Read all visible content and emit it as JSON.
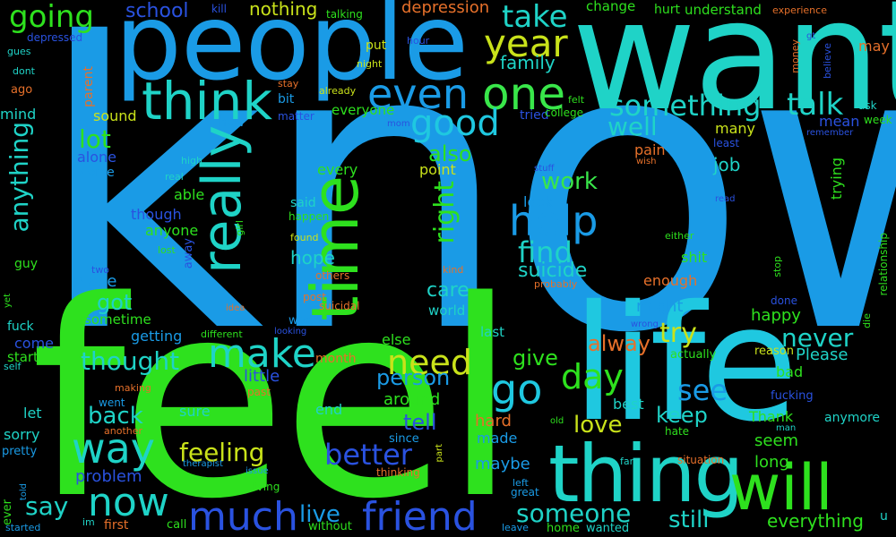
{
  "words": [
    {
      "text": "know",
      "color": "#1a9be6"
    },
    {
      "text": "feel",
      "color": "#2ee11e"
    },
    {
      "text": "want",
      "color": "#1fd3c7"
    },
    {
      "text": "people",
      "color": "#1a9be6"
    },
    {
      "text": "life",
      "color": "#1fc8e0"
    },
    {
      "text": "thing",
      "color": "#1fd3c7"
    },
    {
      "text": "will",
      "color": "#2ee11e"
    },
    {
      "text": "time",
      "color": "#2ee11e"
    },
    {
      "text": "think",
      "color": "#1fd3c7"
    },
    {
      "text": "really",
      "color": "#1fd3c7"
    },
    {
      "text": "one",
      "color": "#39e64a"
    },
    {
      "text": "even",
      "color": "#1a9be6"
    },
    {
      "text": "year",
      "color": "#c9e21a"
    },
    {
      "text": "good",
      "color": "#1fc8e0"
    },
    {
      "text": "help",
      "color": "#1a9be6"
    },
    {
      "text": "make",
      "color": "#1fd3c7"
    },
    {
      "text": "going",
      "color": "#2ee11e"
    },
    {
      "text": "take",
      "color": "#1fd3c7"
    },
    {
      "text": "something",
      "color": "#1fd3c7"
    },
    {
      "text": "talk",
      "color": "#1fd3c7"
    },
    {
      "text": "friend",
      "color": "#2a52e0"
    },
    {
      "text": "much",
      "color": "#2a52e0"
    },
    {
      "text": "now",
      "color": "#1fd3c7"
    },
    {
      "text": "way",
      "color": "#1fd3c7"
    },
    {
      "text": "go",
      "color": "#1fc8e0"
    },
    {
      "text": "need",
      "color": "#c9e21a"
    },
    {
      "text": "day",
      "color": "#2ee11e"
    },
    {
      "text": "see",
      "color": "#1a9be6"
    },
    {
      "text": "better",
      "color": "#2a52e0"
    },
    {
      "text": "feeling",
      "color": "#c9e21a"
    },
    {
      "text": "someone",
      "color": "#1fd3c7"
    },
    {
      "text": "find",
      "color": "#1fd3c7"
    },
    {
      "text": "well",
      "color": "#1fd3c7"
    },
    {
      "text": "lot",
      "color": "#2ee11e"
    },
    {
      "text": "anything",
      "color": "#1fd3c7"
    },
    {
      "text": "school",
      "color": "#2a52e0"
    },
    {
      "text": "nothing",
      "color": "#c9e21a"
    },
    {
      "text": "depression",
      "color": "#e6702a"
    },
    {
      "text": "family",
      "color": "#1fd3c7"
    },
    {
      "text": "never",
      "color": "#1fd3c7"
    },
    {
      "text": "try",
      "color": "#c9e21a"
    },
    {
      "text": "thought",
      "color": "#1fd3c7"
    },
    {
      "text": "back",
      "color": "#1fd3c7"
    },
    {
      "text": "say",
      "color": "#1fd3c7"
    },
    {
      "text": "live",
      "color": "#1a9be6"
    },
    {
      "text": "still",
      "color": "#1fd3c7"
    },
    {
      "text": "love",
      "color": "#c9e21a"
    },
    {
      "text": "keep",
      "color": "#1fd3c7"
    },
    {
      "text": "right",
      "color": "#2ee11e"
    },
    {
      "text": "work",
      "color": "#39e64a"
    },
    {
      "text": "alway",
      "color": "#e6702a"
    },
    {
      "text": "also",
      "color": "#2ee11e"
    },
    {
      "text": "job",
      "color": "#1fd3c7"
    },
    {
      "text": "got",
      "color": "#1fd3c7"
    },
    {
      "text": "give",
      "color": "#2ee11e"
    },
    {
      "text": "person",
      "color": "#1a9be6"
    },
    {
      "text": "tell",
      "color": "#2a52e0"
    },
    {
      "text": "care",
      "color": "#1fd3c7"
    },
    {
      "text": "hope",
      "color": "#1fd3c7"
    },
    {
      "text": "suicide",
      "color": "#1fd3c7"
    },
    {
      "text": "everything",
      "color": "#2ee11e"
    },
    {
      "text": "Please",
      "color": "#1fd3c7"
    },
    {
      "text": "long",
      "color": "#2ee11e"
    },
    {
      "text": "seem",
      "color": "#2ee11e"
    },
    {
      "text": "happy",
      "color": "#2ee11e"
    },
    {
      "text": "maybe",
      "color": "#1a9be6"
    },
    {
      "text": "problem",
      "color": "#2a52e0"
    },
    {
      "text": "place",
      "color": "#1a9be6"
    },
    {
      "text": "might",
      "color": "#1a9be6"
    },
    {
      "text": "sometime",
      "color": "#2ee11e"
    },
    {
      "text": "getting",
      "color": "#1a9be6"
    },
    {
      "text": "little",
      "color": "#2a52e0"
    },
    {
      "text": "around",
      "color": "#2ee11e"
    },
    {
      "text": "else",
      "color": "#2ee11e"
    },
    {
      "text": "hard",
      "color": "#e6702a"
    },
    {
      "text": "made",
      "color": "#1a9be6"
    },
    {
      "text": "best",
      "color": "#1fd3c7"
    },
    {
      "text": "Thank",
      "color": "#2ee11e"
    },
    {
      "text": "bad",
      "color": "#2ee11e"
    },
    {
      "text": "sure",
      "color": "#1fd3c7"
    },
    {
      "text": "end",
      "color": "#1fd3c7"
    },
    {
      "text": "let",
      "color": "#1fd3c7"
    },
    {
      "text": "sorry",
      "color": "#1fd3c7"
    },
    {
      "text": "pretty",
      "color": "#1a9be6"
    },
    {
      "text": "come",
      "color": "#2a52e0"
    },
    {
      "text": "start",
      "color": "#2ee11e"
    },
    {
      "text": "fuck",
      "color": "#1fd3c7"
    },
    {
      "text": "guy",
      "color": "#2ee11e"
    },
    {
      "text": "mind",
      "color": "#1fd3c7"
    },
    {
      "text": "alone",
      "color": "#2a52e0"
    },
    {
      "text": "worse",
      "color": "#1a9be6"
    },
    {
      "text": "sound",
      "color": "#c9e21a"
    },
    {
      "text": "able",
      "color": "#2ee11e"
    },
    {
      "text": "though",
      "color": "#2a52e0"
    },
    {
      "text": "anyone",
      "color": "#2ee11e"
    },
    {
      "text": "said",
      "color": "#1fd3c7"
    },
    {
      "text": "every",
      "color": "#2ee11e"
    },
    {
      "text": "point",
      "color": "#c9e21a"
    },
    {
      "text": "look",
      "color": "#1a9be6"
    },
    {
      "text": "shit",
      "color": "#2ee11e"
    },
    {
      "text": "enough",
      "color": "#e6702a"
    },
    {
      "text": "pain",
      "color": "#e6702a"
    },
    {
      "text": "many",
      "color": "#c9e21a"
    },
    {
      "text": "trying",
      "color": "#2ee11e"
    },
    {
      "text": "mean",
      "color": "#2a52e0"
    },
    {
      "text": "tried",
      "color": "#2a52e0"
    },
    {
      "text": "everyone",
      "color": "#2ee11e"
    },
    {
      "text": "world",
      "color": "#1fd3c7"
    },
    {
      "text": "last",
      "color": "#1fd3c7"
    },
    {
      "text": "month",
      "color": "#e6702a"
    },
    {
      "text": "change",
      "color": "#2ee11e"
    },
    {
      "text": "understand",
      "color": "#2ee11e"
    },
    {
      "text": "hurt",
      "color": "#2ee11e"
    },
    {
      "text": "may",
      "color": "#e6702a"
    },
    {
      "text": "put",
      "color": "#c9e21a"
    },
    {
      "text": "talking",
      "color": "#2ee11e"
    },
    {
      "text": "kill",
      "color": "#2a52e0"
    },
    {
      "text": "experience",
      "color": "#e6702a"
    },
    {
      "text": "depressed",
      "color": "#2a52e0"
    },
    {
      "text": "gues",
      "color": "#1fd3c7"
    },
    {
      "text": "dont",
      "color": "#1fd3c7"
    },
    {
      "text": "ago",
      "color": "#e6702a"
    },
    {
      "text": "parent",
      "color": "#e6702a"
    },
    {
      "text": "new",
      "color": "#1a9be6"
    },
    {
      "text": "bit",
      "color": "#1a9be6"
    },
    {
      "text": "matter",
      "color": "#2a52e0"
    },
    {
      "text": "stay",
      "color": "#e6702a"
    },
    {
      "text": "already",
      "color": "#c9e21a"
    },
    {
      "text": "hour",
      "color": "#2a52e0"
    },
    {
      "text": "night",
      "color": "#c9e21a"
    },
    {
      "text": "mom",
      "color": "#2a52e0"
    },
    {
      "text": "felt",
      "color": "#2ee11e"
    },
    {
      "text": "college",
      "color": "#2ee11e"
    },
    {
      "text": "money",
      "color": "#e6702a"
    },
    {
      "text": "believe",
      "color": "#2a52e0"
    },
    {
      "text": "gt",
      "color": "#2a52e0"
    },
    {
      "text": "ask",
      "color": "#1fd3c7"
    },
    {
      "text": "week",
      "color": "#2ee11e"
    },
    {
      "text": "remember",
      "color": "#2a52e0"
    },
    {
      "text": "least",
      "color": "#2a52e0"
    },
    {
      "text": "wish",
      "color": "#e6702a"
    },
    {
      "text": "stuff",
      "color": "#2a52e0"
    },
    {
      "text": "high",
      "color": "#1fd3c7"
    },
    {
      "text": "real",
      "color": "#1fd3c7"
    },
    {
      "text": "happen",
      "color": "#2ee11e"
    },
    {
      "text": "found",
      "color": "#c9e21a"
    },
    {
      "text": "lost",
      "color": "#2ee11e"
    },
    {
      "text": "away",
      "color": "#2a52e0"
    },
    {
      "text": "girl",
      "color": "#2ee11e"
    },
    {
      "text": "others",
      "color": "#e6702a"
    },
    {
      "text": "post",
      "color": "#e6702a"
    },
    {
      "text": "suicidal",
      "color": "#e6702a"
    },
    {
      "text": "worth",
      "color": "#1a9be6"
    },
    {
      "text": "looking",
      "color": "#2a52e0"
    },
    {
      "text": "idea",
      "color": "#e6702a"
    },
    {
      "text": "different",
      "color": "#2ee11e"
    },
    {
      "text": "making",
      "color": "#e6702a"
    },
    {
      "text": "went",
      "color": "#1a9be6"
    },
    {
      "text": "another",
      "color": "#e6702a"
    },
    {
      "text": "past",
      "color": "#e6702a"
    },
    {
      "text": "therapist",
      "color": "#1a9be6"
    },
    {
      "text": "issue",
      "color": "#1a9be6"
    },
    {
      "text": "living",
      "color": "#2ee11e"
    },
    {
      "text": "since",
      "color": "#1a9be6"
    },
    {
      "text": "part",
      "color": "#c9e21a"
    },
    {
      "text": "thinking",
      "color": "#e6702a"
    },
    {
      "text": "left",
      "color": "#1a9be6"
    },
    {
      "text": "great",
      "color": "#1a9be6"
    },
    {
      "text": "leave",
      "color": "#1a9be6"
    },
    {
      "text": "home",
      "color": "#2ee11e"
    },
    {
      "text": "wanted",
      "color": "#1fd3c7"
    },
    {
      "text": "first",
      "color": "#e6702a"
    },
    {
      "text": "call",
      "color": "#2ee11e"
    },
    {
      "text": "without",
      "color": "#2ee11e"
    },
    {
      "text": "started",
      "color": "#1a9be6"
    },
    {
      "text": "im",
      "color": "#1fd3c7"
    },
    {
      "text": "told",
      "color": "#1a9be6"
    },
    {
      "text": "ever",
      "color": "#2ee11e"
    },
    {
      "text": "self",
      "color": "#1fd3c7"
    },
    {
      "text": "yet",
      "color": "#2ee11e"
    },
    {
      "text": "two",
      "color": "#2a52e0"
    },
    {
      "text": "kind",
      "color": "#e6702a"
    },
    {
      "text": "probably",
      "color": "#e6702a"
    },
    {
      "text": "wrong",
      "color": "#2a52e0"
    },
    {
      "text": "actually",
      "color": "#2ee11e"
    },
    {
      "text": "reason",
      "color": "#c9e21a"
    },
    {
      "text": "fucking",
      "color": "#2a52e0"
    },
    {
      "text": "hate",
      "color": "#2ee11e"
    },
    {
      "text": "situation",
      "color": "#e6702a"
    },
    {
      "text": "far",
      "color": "#1fd3c7"
    },
    {
      "text": "man",
      "color": "#1fd3c7"
    },
    {
      "text": "old",
      "color": "#2ee11e"
    },
    {
      "text": "anymore",
      "color": "#1fd3c7"
    },
    {
      "text": "either",
      "color": "#2ee11e"
    },
    {
      "text": "read",
      "color": "#2a52e0"
    },
    {
      "text": "stop",
      "color": "#2ee11e"
    },
    {
      "text": "done",
      "color": "#2a52e0"
    },
    {
      "text": "die",
      "color": "#2ee11e"
    },
    {
      "text": "relationship",
      "color": "#2ee11e"
    },
    {
      "text": "u",
      "color": "#1fd3c7"
    }
  ]
}
